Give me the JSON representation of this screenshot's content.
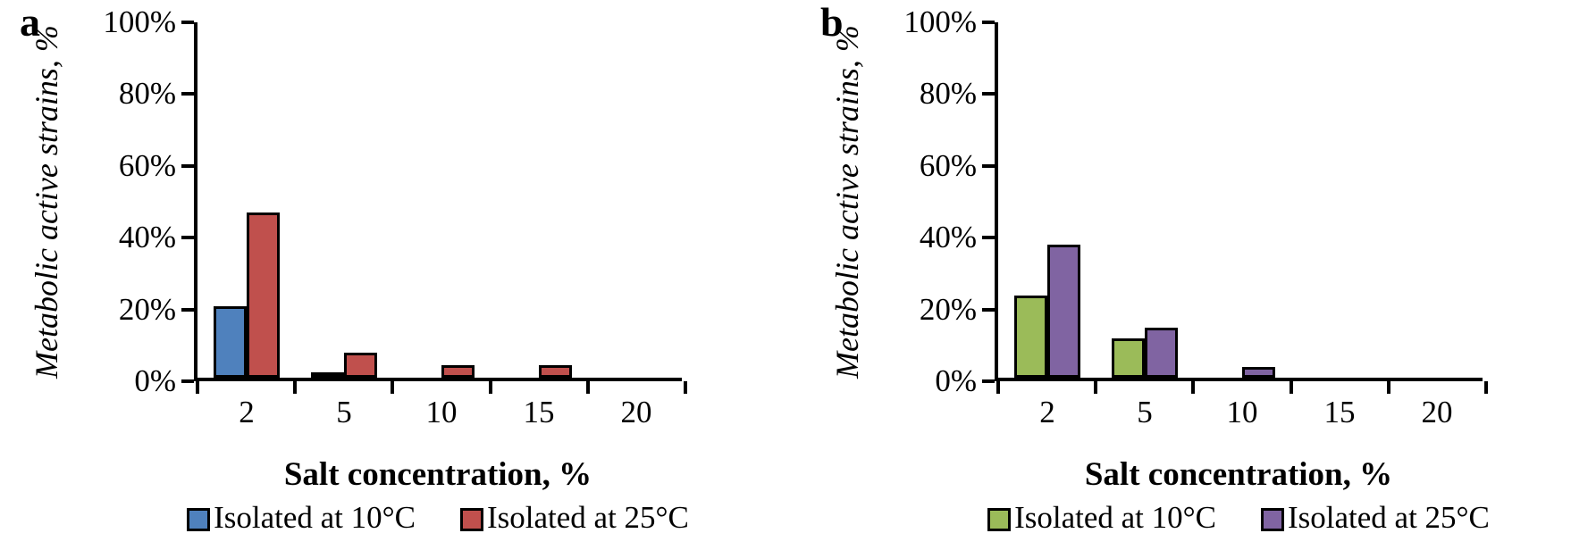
{
  "chart_data": [
    {
      "type": "bar",
      "panel_label": "a",
      "xlabel": "Salt concentration, %",
      "ylabel": "Metabolic active strains, %",
      "categories": [
        "2",
        "5",
        "10",
        "15",
        "20"
      ],
      "ylim": [
        0,
        100
      ],
      "grid": false,
      "legend_position": "bottom",
      "y_ticks": [
        {
          "value": 0,
          "label": "0%"
        },
        {
          "value": 20,
          "label": "20%"
        },
        {
          "value": 40,
          "label": "40%"
        },
        {
          "value": 60,
          "label": "60%"
        },
        {
          "value": 80,
          "label": "80%"
        },
        {
          "value": 100,
          "label": "100%"
        }
      ],
      "series": [
        {
          "name": "Isolated at 10°C",
          "color": "#4F81BD",
          "values": [
            20,
            1,
            0,
            0,
            0
          ]
        },
        {
          "name": "Isolated at 25°C",
          "color": "#C0504D",
          "values": [
            46,
            7,
            3.5,
            3.5,
            0
          ]
        }
      ]
    },
    {
      "type": "bar",
      "panel_label": "b",
      "xlabel": "Salt concentration, %",
      "ylabel": "Metabolic active strains, %",
      "categories": [
        "2",
        "5",
        "10",
        "15",
        "20"
      ],
      "ylim": [
        0,
        100
      ],
      "grid": false,
      "legend_position": "bottom",
      "y_ticks": [
        {
          "value": 0,
          "label": "0%"
        },
        {
          "value": 20,
          "label": "20%"
        },
        {
          "value": 40,
          "label": "40%"
        },
        {
          "value": 60,
          "label": "60%"
        },
        {
          "value": 80,
          "label": "80%"
        },
        {
          "value": 100,
          "label": "100%"
        }
      ],
      "series": [
        {
          "name": "Isolated at 10°C",
          "color": "#9BBB59",
          "values": [
            23,
            11,
            0,
            0,
            0
          ]
        },
        {
          "name": "Isolated at 25°C",
          "color": "#8064A2",
          "values": [
            37,
            14,
            3,
            0,
            0
          ]
        }
      ]
    }
  ],
  "styles": {
    "axis_color": "#000000",
    "bar_border_color": "#000000",
    "background": "#ffffff"
  }
}
